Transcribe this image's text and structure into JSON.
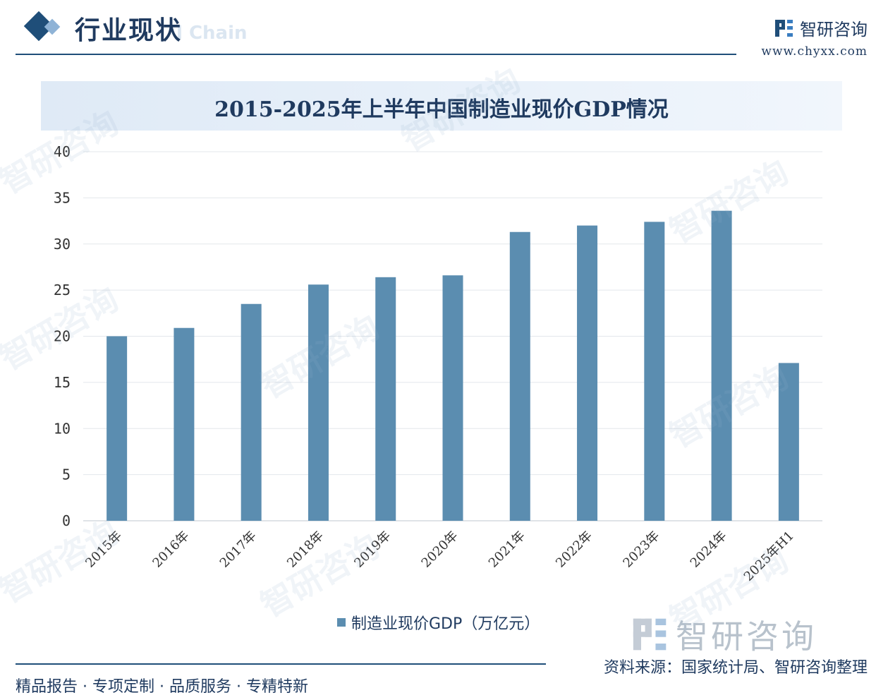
{
  "header": {
    "section_title": "行业现状",
    "ghost_text": "l Chain"
  },
  "brand": {
    "name": "智研咨询",
    "url": "www.chyxx.com"
  },
  "chart_data": {
    "type": "bar",
    "title": "2015-2025年上半年中国制造业现价GDP情况",
    "categories": [
      "2015年",
      "2016年",
      "2017年",
      "2018年",
      "2019年",
      "2020年",
      "2021年",
      "2022年",
      "2023年",
      "2024年",
      "2025年H1"
    ],
    "series": [
      {
        "name": "制造业现价GDP（万亿元）",
        "values": [
          20.0,
          20.9,
          23.5,
          25.6,
          26.4,
          26.6,
          31.3,
          32.0,
          32.4,
          33.6,
          17.1
        ]
      }
    ],
    "ylim": [
      0,
      40
    ],
    "yticks": [
      0,
      5,
      10,
      15,
      20,
      25,
      30,
      35,
      40
    ],
    "grid": true,
    "legend_position": "bottom",
    "bar_color": "#5b8db0"
  },
  "watermark_text": "智研咨询",
  "big_brand": "智研咨询",
  "footer": {
    "left": "精品报告 · 专项定制 · 品质服务 · 专精特新",
    "source": "资料来源：国家统计局、智研咨询整理"
  }
}
